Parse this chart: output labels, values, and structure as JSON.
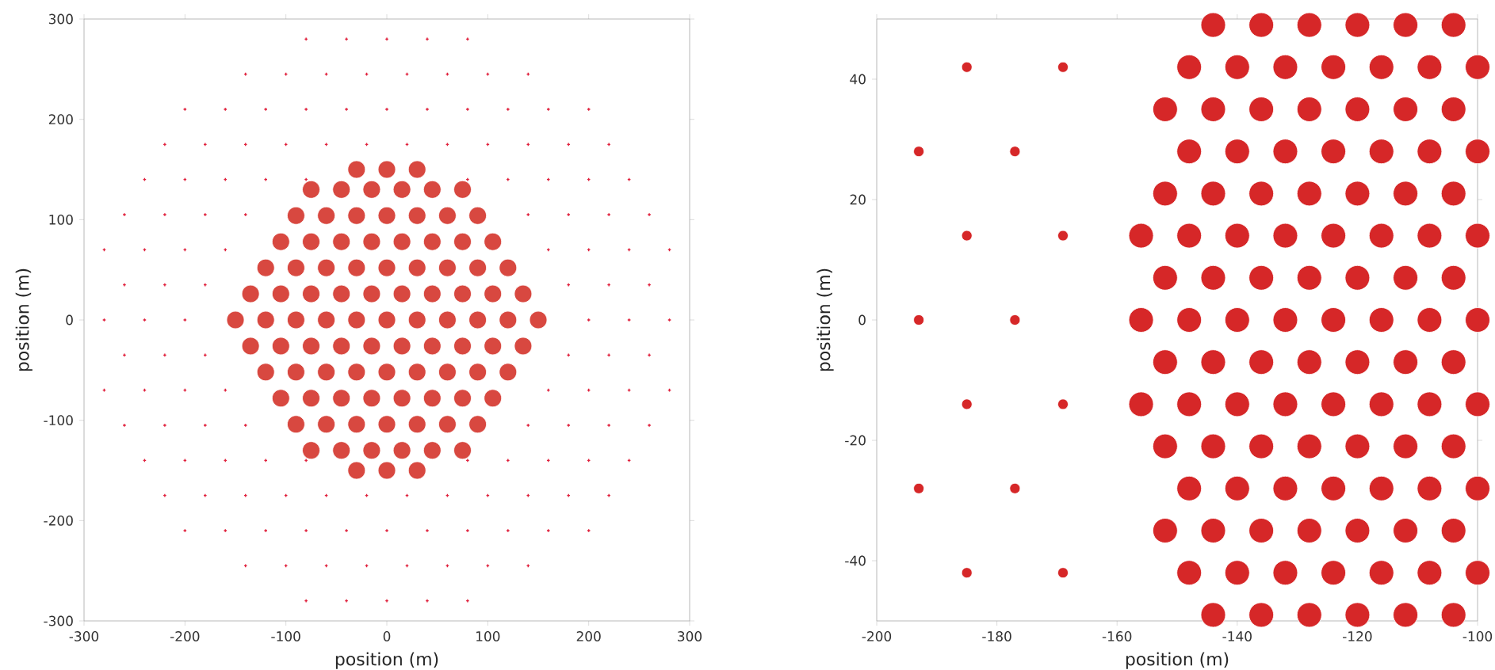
{
  "chart_data": [
    {
      "type": "scatter",
      "xlabel": "position (m)",
      "ylabel": "position (m)",
      "xlim": [
        -300,
        300
      ],
      "ylim": [
        -300,
        300
      ],
      "xticks": [
        -300,
        -200,
        -100,
        0,
        100,
        200,
        300
      ],
      "yticks": [
        -300,
        -200,
        -100,
        0,
        100,
        200,
        300
      ],
      "series": [
        {
          "color": "#e0203c",
          "marker": "cross",
          "x": [
            -280,
            -240,
            -200,
            200,
            240,
            280,
            -260,
            -220,
            -180,
            180,
            220,
            260,
            -260,
            -220,
            -180,
            180,
            220,
            260,
            -280,
            -240,
            -200,
            -160,
            160,
            200,
            240,
            280,
            -280,
            -240,
            -200,
            -160,
            160,
            200,
            240,
            280,
            -260,
            -220,
            -180,
            -140,
            140,
            180,
            220,
            260,
            -260,
            -220,
            -180,
            -140,
            140,
            180,
            220,
            260,
            -240,
            -200,
            -160,
            -120,
            -80,
            80,
            120,
            160,
            200,
            240,
            -240,
            -200,
            -160,
            -120,
            -80,
            80,
            120,
            160,
            200,
            240,
            -220,
            -180,
            -140,
            -100,
            -60,
            -20,
            20,
            60,
            100,
            140,
            180,
            220,
            -220,
            -180,
            -140,
            -100,
            -60,
            -20,
            20,
            60,
            100,
            140,
            180,
            220,
            -200,
            -160,
            -120,
            -80,
            -40,
            0,
            40,
            80,
            120,
            160,
            200,
            -200,
            -160,
            -120,
            -80,
            -40,
            0,
            40,
            80,
            120,
            160,
            200,
            -140,
            -100,
            -60,
            -20,
            20,
            60,
            100,
            140,
            -140,
            -100,
            -60,
            -20,
            20,
            60,
            100,
            140,
            -80,
            -40,
            0,
            40,
            80,
            -80,
            -40,
            0,
            40,
            80
          ],
          "values": [
            0,
            0,
            0,
            0,
            0,
            0,
            35,
            35,
            35,
            35,
            35,
            35,
            -35,
            -35,
            -35,
            -35,
            -35,
            -35,
            70,
            70,
            70,
            70,
            70,
            70,
            70,
            70,
            -70,
            -70,
            -70,
            -70,
            -70,
            -70,
            -70,
            -70,
            105,
            105,
            105,
            105,
            105,
            105,
            105,
            105,
            -105,
            -105,
            -105,
            -105,
            -105,
            -105,
            -105,
            -105,
            140,
            140,
            140,
            140,
            140,
            140,
            140,
            140,
            140,
            140,
            -140,
            -140,
            -140,
            -140,
            -140,
            -140,
            -140,
            -140,
            -140,
            -140,
            175,
            175,
            175,
            175,
            175,
            175,
            175,
            175,
            175,
            175,
            175,
            175,
            -175,
            -175,
            -175,
            -175,
            -175,
            -175,
            -175,
            -175,
            -175,
            -175,
            -175,
            -175,
            210,
            210,
            210,
            210,
            210,
            210,
            210,
            210,
            210,
            210,
            210,
            -210,
            -210,
            -210,
            -210,
            -210,
            -210,
            -210,
            -210,
            -210,
            -210,
            -210,
            245,
            245,
            245,
            245,
            245,
            245,
            245,
            245,
            -245,
            -245,
            -245,
            -245,
            -245,
            -245,
            -245,
            -245,
            280,
            280,
            280,
            280,
            280,
            -280,
            -280,
            -280,
            -280,
            -280
          ]
        },
        {
          "color": "#d84840",
          "marker": "circle",
          "x": [
            -150,
            -120,
            -90,
            -60,
            -30,
            0,
            30,
            60,
            90,
            120,
            150,
            -135,
            -105,
            -75,
            -45,
            -15,
            15,
            45,
            75,
            105,
            135,
            -135,
            -105,
            -75,
            -45,
            -15,
            15,
            45,
            75,
            105,
            135,
            -120,
            -90,
            -60,
            -30,
            0,
            30,
            60,
            90,
            120,
            -120,
            -90,
            -60,
            -30,
            0,
            30,
            60,
            90,
            120,
            -105,
            -75,
            -45,
            -15,
            15,
            45,
            75,
            105,
            -105,
            -75,
            -45,
            -15,
            15,
            45,
            75,
            105,
            -90,
            -60,
            -30,
            0,
            30,
            60,
            90,
            -90,
            -60,
            -30,
            0,
            30,
            60,
            90,
            -75,
            -45,
            -15,
            15,
            45,
            75,
            -75,
            -45,
            -15,
            15,
            45,
            75,
            -30,
            0,
            30,
            -30,
            0,
            30
          ],
          "values": [
            0,
            0,
            0,
            0,
            0,
            0,
            0,
            0,
            0,
            0,
            0,
            26,
            26,
            26,
            26,
            26,
            26,
            26,
            26,
            26,
            26,
            -26,
            -26,
            -26,
            -26,
            -26,
            -26,
            -26,
            -26,
            -26,
            -26,
            52,
            52,
            52,
            52,
            52,
            52,
            52,
            52,
            52,
            -52,
            -52,
            -52,
            -52,
            -52,
            -52,
            -52,
            -52,
            -52,
            78,
            78,
            78,
            78,
            78,
            78,
            78,
            78,
            -78,
            -78,
            -78,
            -78,
            -78,
            -78,
            -78,
            -78,
            104,
            104,
            104,
            104,
            104,
            104,
            104,
            -104,
            -104,
            -104,
            -104,
            -104,
            -104,
            -104,
            130,
            130,
            130,
            130,
            130,
            130,
            -130,
            -130,
            -130,
            -130,
            -130,
            -130,
            150,
            150,
            150,
            -150,
            -150,
            -150
          ]
        }
      ]
    },
    {
      "type": "scatter",
      "xlabel": "position (m)",
      "ylabel": "position (m)",
      "xlim": [
        -200,
        -100
      ],
      "ylim": [
        -50,
        50
      ],
      "xticks": [
        -200,
        -180,
        -160,
        -140,
        -120,
        -100
      ],
      "yticks": [
        -40,
        -20,
        0,
        20,
        40
      ],
      "series": [
        {
          "color": "#d62728",
          "marker": "circle",
          "x": [
            -185,
            -169,
            -193,
            -177,
            -185,
            -169,
            -193,
            -177,
            -185,
            -169,
            -193,
            -177,
            -185,
            -169
          ],
          "values": [
            42,
            42,
            28,
            28,
            14,
            14,
            0,
            0,
            -14,
            -14,
            -28,
            -28,
            -42,
            -42
          ]
        },
        {
          "color": "#d62728",
          "marker": "circle",
          "x": [
            -156,
            -148,
            -140,
            -132,
            -124,
            -116,
            -108,
            -100,
            -156,
            -148,
            -140,
            -132,
            -124,
            -116,
            -108,
            -100,
            -156,
            -148,
            -140,
            -132,
            -124,
            -116,
            -108,
            -100,
            -148,
            -140,
            -132,
            -124,
            -116,
            -108,
            -100,
            -148,
            -140,
            -132,
            -124,
            -116,
            -108,
            -100,
            -148,
            -140,
            -132,
            -124,
            -116,
            -108,
            -100,
            -148,
            -140,
            -132,
            -124,
            -116,
            -108,
            -100,
            -152,
            -144,
            -136,
            -128,
            -120,
            -112,
            -104,
            -152,
            -144,
            -136,
            -128,
            -120,
            -112,
            -104,
            -152,
            -144,
            -136,
            -128,
            -120,
            -112,
            -104,
            -152,
            -144,
            -136,
            -128,
            -120,
            -112,
            -104,
            -152,
            -144,
            -136,
            -128,
            -120,
            -112,
            -104,
            -152,
            -144,
            -136,
            -128,
            -120,
            -112,
            -104,
            -144,
            -136,
            -128,
            -120,
            -112,
            -104,
            -144,
            -136,
            -128,
            -120,
            -112,
            -104
          ],
          "values": [
            0,
            0,
            0,
            0,
            0,
            0,
            0,
            0,
            14,
            14,
            14,
            14,
            14,
            14,
            14,
            14,
            -14,
            -14,
            -14,
            -14,
            -14,
            -14,
            -14,
            -14,
            28,
            28,
            28,
            28,
            28,
            28,
            28,
            -28,
            -28,
            -28,
            -28,
            -28,
            -28,
            -28,
            42,
            42,
            42,
            42,
            42,
            42,
            42,
            -42,
            -42,
            -42,
            -42,
            -42,
            -42,
            -42,
            7,
            7,
            7,
            7,
            7,
            7,
            7,
            -7,
            -7,
            -7,
            -7,
            -7,
            -7,
            -7,
            21,
            21,
            21,
            21,
            21,
            21,
            21,
            -21,
            -21,
            -21,
            -21,
            -21,
            -21,
            -21,
            35,
            35,
            35,
            35,
            35,
            35,
            35,
            -35,
            -35,
            -35,
            -35,
            -35,
            -35,
            -35,
            49,
            49,
            49,
            49,
            49,
            49,
            -49,
            -49,
            -49,
            -49,
            -49,
            -49
          ]
        }
      ]
    }
  ]
}
